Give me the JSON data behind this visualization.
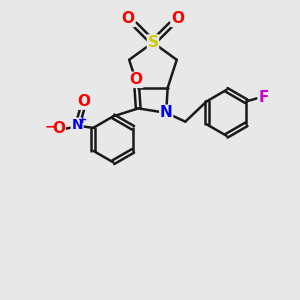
{
  "bg_color": "#e8e8e8",
  "bond_color": "#1a1a1a",
  "bond_width": 1.8,
  "atom_colors": {
    "S": "#cccc00",
    "O": "#ff0000",
    "N": "#0000ee",
    "F": "#cc00cc"
  },
  "ring_r": 0.85,
  "benz_r": 0.78
}
